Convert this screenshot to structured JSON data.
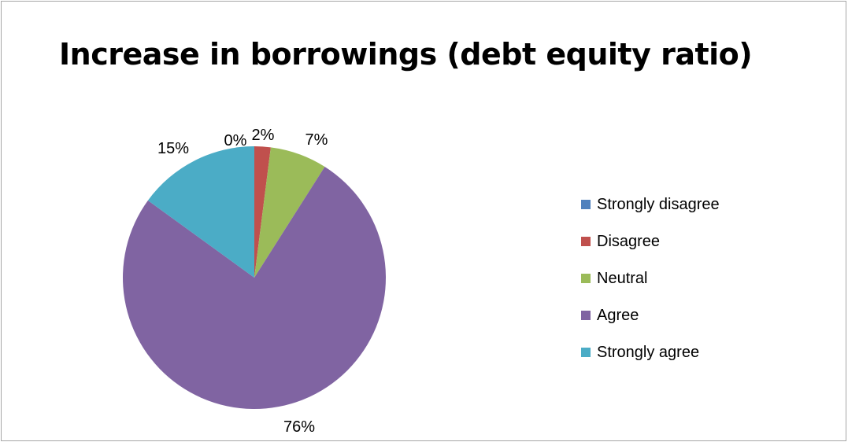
{
  "chart_data": {
    "type": "pie",
    "title": "Increase in borrowings (debt equity ratio)",
    "categories": [
      "Strongly disagree",
      "Disagree",
      "Neutral",
      "Agree",
      "Strongly agree"
    ],
    "values": [
      0,
      2,
      7,
      76,
      15
    ],
    "labels": [
      "0%",
      "2%",
      "7%",
      "76%",
      "15%"
    ],
    "colors": [
      "#4f81bd",
      "#c0504d",
      "#9bbb59",
      "#8064a2",
      "#4bacc6"
    ],
    "legend_position": "right"
  }
}
